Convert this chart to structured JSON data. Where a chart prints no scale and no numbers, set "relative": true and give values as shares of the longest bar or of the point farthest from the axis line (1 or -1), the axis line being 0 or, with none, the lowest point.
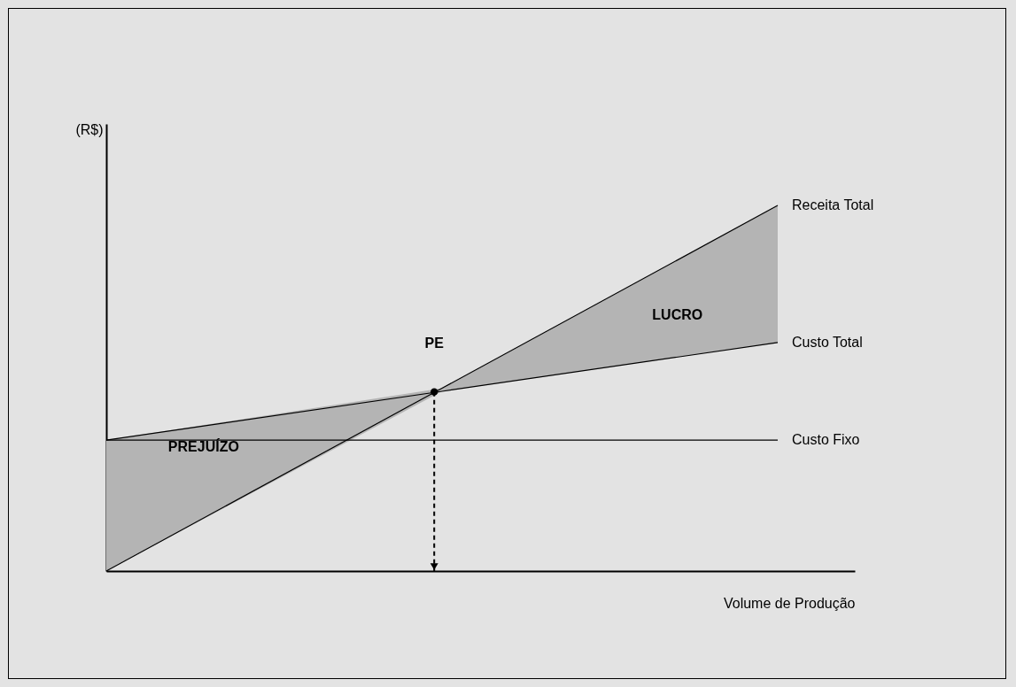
{
  "chart_data": {
    "type": "line",
    "relative": true,
    "xlabel": "Volume de Produção",
    "ylabel": "(R$)",
    "categories": [
      null,
      null,
      null
    ],
    "series": [
      {
        "name": "Receita Total",
        "color": "#000000",
        "values": [
          0,
          0.5,
          1
        ]
      },
      {
        "name": "Custo Total",
        "color": "#000000",
        "values": [
          0.358,
          0.4915,
          0.625
        ],
        "lower": [
          0,
          0.4915,
          0.625
        ],
        "upper": [
          0.358,
          0.5,
          1
        ]
      },
      {
        "name": "Custo Fixo",
        "color": "#000000",
        "values": [
          0.358,
          0.358,
          0.358
        ]
      }
    ],
    "annotations": [
      "LUCRO",
      "PREJUÍZO",
      {
        "text": "PE",
        "y": 0.49
      }
    ]
  }
}
